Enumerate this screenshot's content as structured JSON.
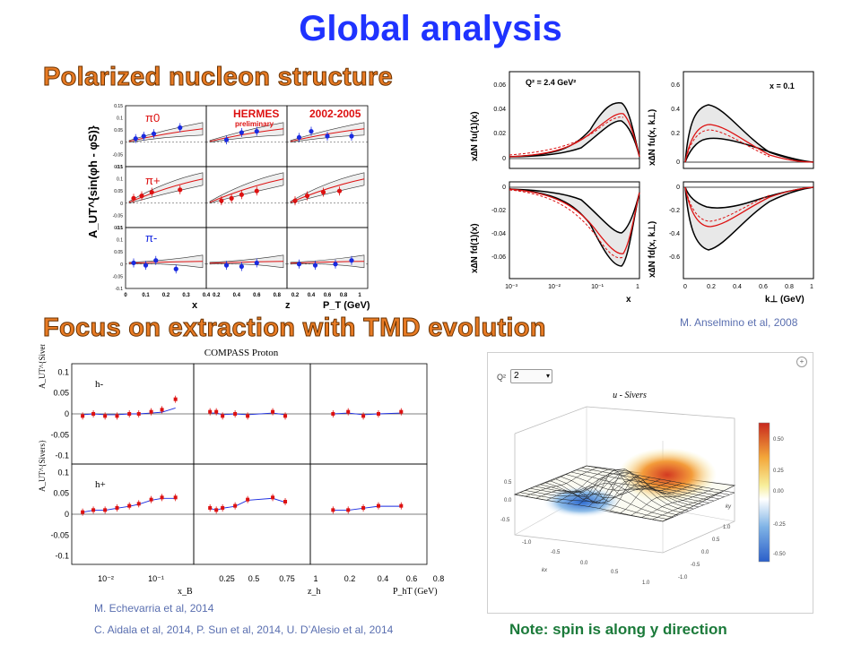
{
  "title": "Global analysis",
  "sections": {
    "polarized": "Polarized nucleon structure",
    "focus": "Focus on extraction with TMD evolution"
  },
  "citations": {
    "anselmino": "M. Anselmino et al, 2008",
    "echevarria": "M. Echevarria et al, 2014",
    "aidala": "C. Aidala et al, 2014, P. Sun et al, 2014, U. D’Alesio et al, 2014"
  },
  "note": "Note: spin is along y direction",
  "colors": {
    "title": "#1f33ff",
    "section": "#e87b24",
    "note": "#1b7a3a",
    "cite": "#5a6fb0",
    "data_blue": "#1a2be0",
    "data_red": "#dd1111"
  },
  "chart_data": [
    {
      "type": "scatter",
      "ylabel": "A_UT^{sin(φh - φS)}",
      "panels_top": [
        "HERMES",
        "preliminary",
        "2002-2005"
      ],
      "rows": [
        "π0",
        "π+",
        "π-"
      ],
      "xlabels": [
        "x",
        "z",
        "P_T (GeV)"
      ],
      "yticks": [
        "0.15",
        "0.1",
        "0.05",
        "0",
        "-0.05",
        "-0.1"
      ],
      "xticks": [
        [
          "0",
          "0.1",
          "0.2",
          "0.3",
          "0.4"
        ],
        [
          "0.2",
          "0.4",
          "0.6",
          "0.8"
        ],
        [
          "0.2",
          "0.4",
          "0.6",
          "0.8",
          "1"
        ]
      ],
      "series": [
        {
          "row": "π0",
          "col": 0,
          "x": [
            0.05,
            0.09,
            0.14,
            0.27
          ],
          "y": [
            0.015,
            0.025,
            0.035,
            0.06
          ]
        },
        {
          "row": "π0",
          "col": 1,
          "x": [
            0.3,
            0.45,
            0.6
          ],
          "y": [
            0.01,
            0.04,
            0.045
          ]
        },
        {
          "row": "π0",
          "col": 2,
          "x": [
            0.25,
            0.4,
            0.6,
            0.9
          ],
          "y": [
            0.02,
            0.045,
            0.025,
            0.025
          ]
        },
        {
          "row": "π+",
          "col": 0,
          "x": [
            0.04,
            0.08,
            0.13,
            0.27
          ],
          "y": [
            0.02,
            0.03,
            0.045,
            0.055
          ]
        },
        {
          "row": "π+",
          "col": 1,
          "x": [
            0.25,
            0.35,
            0.45,
            0.6
          ],
          "y": [
            0.01,
            0.02,
            0.035,
            0.05
          ]
        },
        {
          "row": "π+",
          "col": 2,
          "x": [
            0.2,
            0.35,
            0.55,
            0.75
          ],
          "y": [
            0.01,
            0.03,
            0.045,
            0.05
          ]
        },
        {
          "row": "π-",
          "col": 0,
          "x": [
            0.04,
            0.1,
            0.15,
            0.25
          ],
          "y": [
            0.005,
            -0.005,
            0.015,
            -0.02
          ]
        },
        {
          "row": "π-",
          "col": 1,
          "x": [
            0.3,
            0.45,
            0.6
          ],
          "y": [
            -0.005,
            -0.01,
            0.005
          ]
        },
        {
          "row": "π-",
          "col": 2,
          "x": [
            0.25,
            0.45,
            0.7,
            0.9
          ],
          "y": [
            0.0,
            -0.005,
            0.0,
            0.015
          ]
        }
      ]
    },
    {
      "type": "line",
      "label_q2": "Q² = 2.4 GeV²",
      "label_x": "x = 0.1",
      "ylabels": [
        "x∆N fu(1)(x)",
        "x∆N fd(1)(x)",
        "x∆N fu(x, k⊥)",
        "x∆N fd(x, k⊥)"
      ],
      "xlabels": [
        "x",
        "k⊥ (GeV)"
      ],
      "yticks_u": [
        "0.06",
        "0.04",
        "0.02",
        "0"
      ],
      "yticks_d": [
        "0",
        "-0.02",
        "-0.04",
        "-0.06"
      ],
      "yticks_ku": [
        "0.6",
        "0.4",
        "0.2",
        "0"
      ],
      "yticks_kd": [
        "0",
        "-0.2",
        "-0.4",
        "-0.6"
      ],
      "xticks_log": [
        "10⁻³",
        "10⁻²",
        "10⁻¹",
        "1"
      ],
      "xticks_k": [
        "0",
        "0.2",
        "0.4",
        "0.6",
        "0.8",
        "1"
      ]
    },
    {
      "type": "scatter",
      "title": "COMPASS Proton",
      "ylabel": "A_UT^{Sivers}",
      "rows": [
        "h-",
        "h+"
      ],
      "yticks": [
        "0.1",
        "0.05",
        "0",
        "-0.05",
        "-0.1"
      ],
      "xlabels": [
        "x_B",
        "z_h",
        "P_hT (GeV)"
      ],
      "xticks": [
        [
          "10⁻²",
          "10⁻¹"
        ],
        [
          "0.25",
          "0.5",
          "0.75",
          "1"
        ],
        [
          "0.2",
          "0.4",
          "0.6",
          "0.8"
        ]
      ],
      "series": [
        {
          "row": "h-",
          "col": 0,
          "x": [
            0.006,
            0.009,
            0.014,
            0.022,
            0.035,
            0.05,
            0.08,
            0.12,
            0.2
          ],
          "y": [
            -0.005,
            0.0,
            -0.005,
            -0.005,
            0.0,
            0.0,
            0.005,
            0.01,
            0.035
          ]
        },
        {
          "row": "h-",
          "col": 1,
          "x": [
            0.25,
            0.3,
            0.35,
            0.45,
            0.55,
            0.75,
            0.85
          ],
          "y": [
            0.005,
            0.005,
            -0.005,
            0.0,
            -0.005,
            0.005,
            -0.005
          ]
        },
        {
          "row": "h-",
          "col": 2,
          "x": [
            0.2,
            0.3,
            0.4,
            0.5,
            0.65
          ],
          "y": [
            0.0,
            0.005,
            -0.005,
            0.0,
            0.005
          ]
        },
        {
          "row": "h+",
          "col": 0,
          "x": [
            0.006,
            0.009,
            0.014,
            0.022,
            0.035,
            0.05,
            0.08,
            0.12,
            0.2
          ],
          "y": [
            0.005,
            0.01,
            0.01,
            0.015,
            0.02,
            0.025,
            0.035,
            0.04,
            0.04
          ]
        },
        {
          "row": "h+",
          "col": 1,
          "x": [
            0.25,
            0.3,
            0.35,
            0.45,
            0.55,
            0.75,
            0.85
          ],
          "y": [
            0.015,
            0.01,
            0.015,
            0.02,
            0.035,
            0.04,
            0.03
          ]
        },
        {
          "row": "h+",
          "col": 2,
          "x": [
            0.2,
            0.3,
            0.4,
            0.5,
            0.65
          ],
          "y": [
            0.01,
            0.01,
            0.015,
            0.02,
            0.02
          ]
        }
      ]
    },
    {
      "type": "heatmap",
      "title": "u - Sivers",
      "control_label": "Q²",
      "control_value": "2",
      "colorbar_ticks": [
        "0.50",
        "0.25",
        "0.00",
        "-0.25",
        "-0.50"
      ],
      "axis_labels": [
        "kx",
        "ky"
      ],
      "ticks": [
        "-1.0",
        "-0.5",
        "0.0",
        "0.5",
        "1.0"
      ]
    }
  ]
}
